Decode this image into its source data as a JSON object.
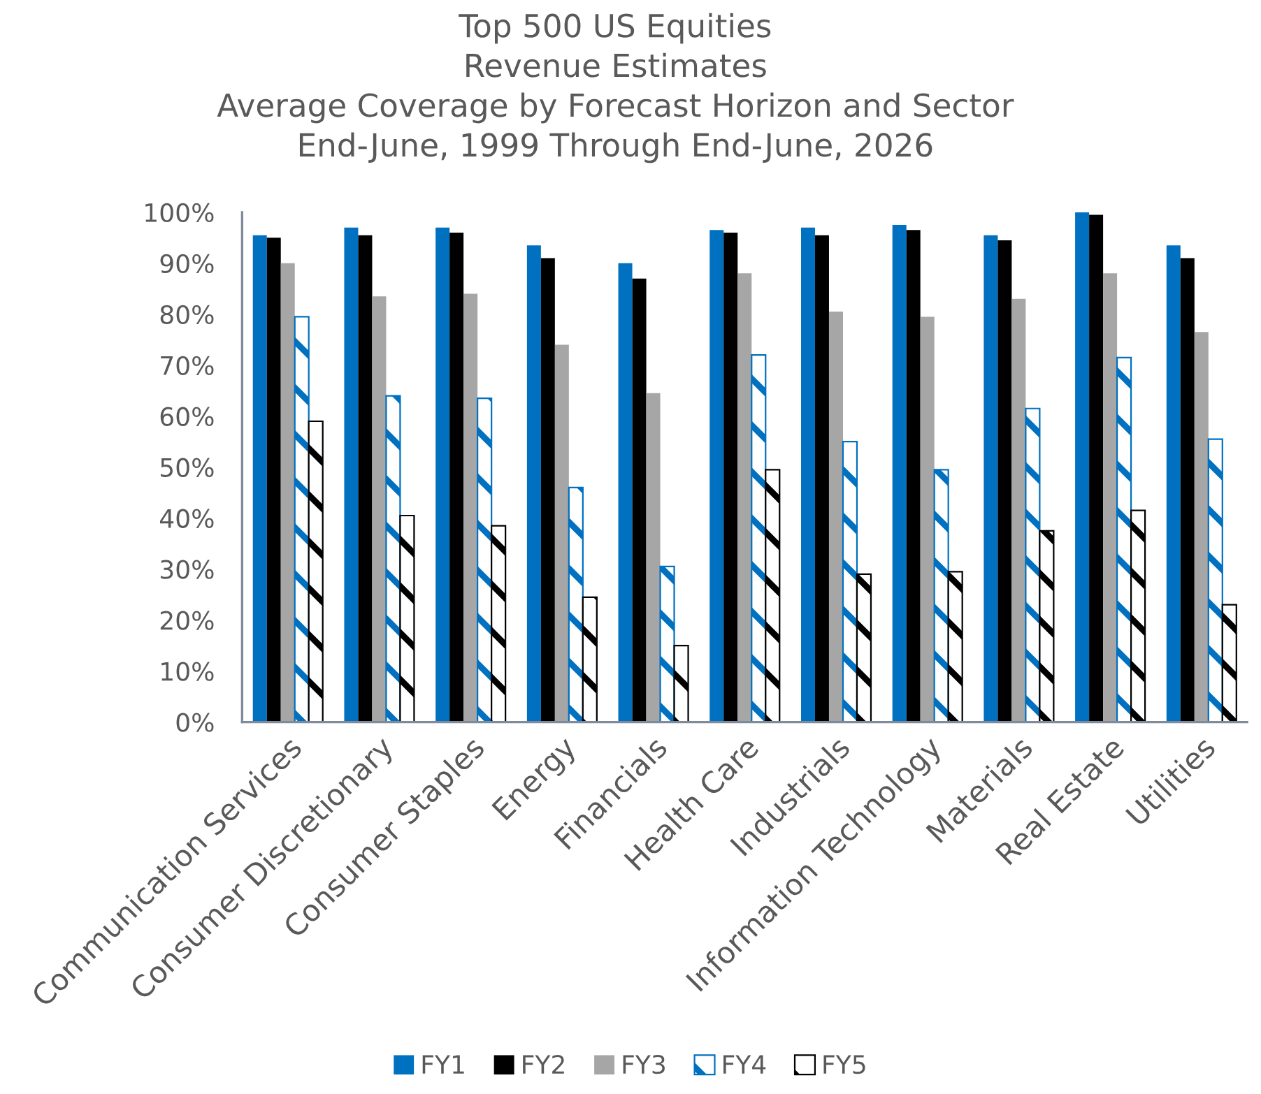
{
  "chart_data": {
    "type": "bar",
    "title": "Top 500 US Equities\nRevenue Estimates\nAverage Coverage by Forecast Horizon and Sector\nEnd-June, 1999 Through End-June, 2026",
    "categories": [
      "Communication Services",
      "Consumer Discretionary",
      "Consumer Staples",
      "Energy",
      "Financials",
      "Health Care",
      "Industrials",
      "Information Technology",
      "Materials",
      "Real Estate",
      "Utilities"
    ],
    "series": [
      {
        "name": "FY1",
        "color": "#0070c0",
        "values": [
          95.5,
          97,
          97,
          93.5,
          90,
          96.5,
          97,
          97.5,
          95.5,
          100,
          93.5
        ]
      },
      {
        "name": "FY2",
        "color": "#000000",
        "values": [
          95,
          95.5,
          96,
          91,
          87,
          96,
          95.5,
          96.5,
          94.5,
          99.5,
          91
        ]
      },
      {
        "name": "FY3",
        "color": "#a6a6a6",
        "values": [
          90,
          83.5,
          84,
          74,
          64.5,
          88,
          80.5,
          79.5,
          83,
          88,
          76.5
        ]
      },
      {
        "name": "FY4",
        "color": "#0070c0",
        "values": [
          79.5,
          64,
          63.5,
          46,
          30.5,
          72,
          55,
          49.5,
          61.5,
          71.5,
          55.5
        ]
      },
      {
        "name": "FY5",
        "color": "#000000",
        "values": [
          59,
          40.5,
          38.5,
          24.5,
          15,
          49.5,
          29,
          29.5,
          37.5,
          41.5,
          23
        ]
      }
    ],
    "ylim": [
      0,
      100
    ],
    "yticks": [
      {
        "value": 0,
        "label": "0%"
      },
      {
        "value": 10,
        "label": "10%"
      },
      {
        "value": 20,
        "label": "20%"
      },
      {
        "value": 30,
        "label": "30%"
      },
      {
        "value": 40,
        "label": "40%"
      },
      {
        "value": 50,
        "label": "50%"
      },
      {
        "value": 60,
        "label": "60%"
      },
      {
        "value": 70,
        "label": "70%"
      },
      {
        "value": 80,
        "label": "80%"
      },
      {
        "value": 90,
        "label": "90%"
      },
      {
        "value": 100,
        "label": "100%"
      }
    ],
    "legend": "bottom"
  }
}
